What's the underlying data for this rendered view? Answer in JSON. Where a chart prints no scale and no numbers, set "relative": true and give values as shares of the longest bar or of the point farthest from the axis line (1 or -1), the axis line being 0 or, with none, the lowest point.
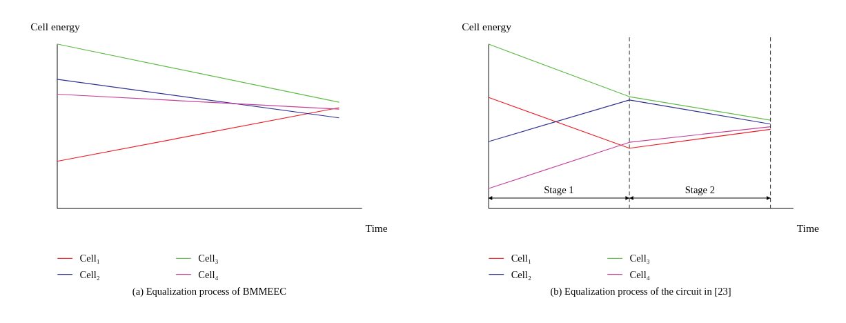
{
  "chart_data": [
    {
      "type": "line",
      "relative": true,
      "title": "(a)  Equalization process of BMMEEC",
      "xlabel": "Time",
      "ylabel": "Cell energy",
      "categories": [
        null,
        null
      ],
      "legend": "bottom",
      "grid": false,
      "series": [
        {
          "name": "Cell₁",
          "color": "#ee1c25",
          "values": [
            0.285,
            0.612
          ]
        },
        {
          "name": "Cell₃",
          "color": "#5dbb46",
          "values": [
            1,
            0.645
          ]
        },
        {
          "name": "Cell₂",
          "color": "#2e3192",
          "values": [
            0.785,
            0.55
          ]
        },
        {
          "name": "Cell₄",
          "color": "#c6409b",
          "values": [
            0.694,
            0.603
          ]
        }
      ]
    },
    {
      "type": "line",
      "relative": true,
      "title": "(b)  Equalization process of the circuit in [23]",
      "xlabel": "Time",
      "ylabel": "Cell energy",
      "categories": [
        null,
        null,
        null
      ],
      "legend": "bottom",
      "grid": false,
      "annotations": [
        "Stage 1",
        "Stage 2"
      ],
      "series": [
        {
          "name": "Cell₁",
          "color": "#ee1c25",
          "values": [
            0.675,
            0.365,
            0.48
          ]
        },
        {
          "name": "Cell₃",
          "color": "#5dbb46",
          "values": [
            1,
            0.679,
            0.536
          ]
        },
        {
          "name": "Cell₂",
          "color": "#2e3192",
          "values": [
            0.405,
            0.659,
            0.512
          ]
        },
        {
          "name": "Cell₄",
          "color": "#c6409b",
          "values": [
            0.119,
            0.401,
            0.496
          ]
        }
      ]
    }
  ]
}
